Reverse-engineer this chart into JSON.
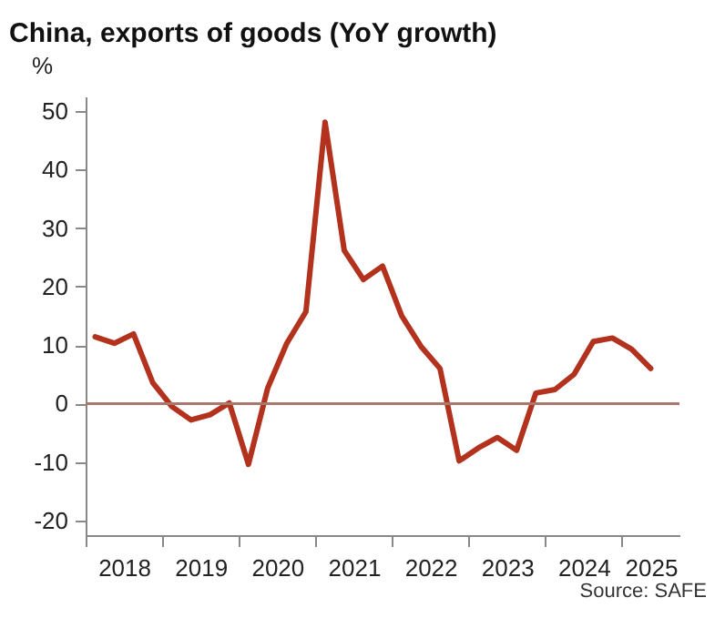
{
  "chart_data": {
    "type": "line",
    "title": "China, exports of goods (YoY growth)",
    "ylabel": "%",
    "annotations": [
      "Source: SAFE"
    ],
    "x": [
      2018.125,
      2018.375,
      2018.625,
      2018.875,
      2019.125,
      2019.375,
      2019.625,
      2019.875,
      2020.125,
      2020.375,
      2020.625,
      2020.875,
      2021.125,
      2021.375,
      2021.625,
      2021.875,
      2022.125,
      2022.375,
      2022.625,
      2022.875,
      2023.125,
      2023.375,
      2023.625,
      2023.875,
      2024.125,
      2024.375,
      2024.625,
      2024.875,
      2025.125,
      2025.375
    ],
    "series": [
      {
        "color": "#b3321e",
        "values": [
          11.4,
          10.3,
          11.9,
          3.6,
          -0.5,
          -2.8,
          -1.9,
          0.1,
          -10.4,
          2.6,
          10.3,
          15.7,
          48.1,
          26.2,
          21.2,
          23.5,
          15.0,
          9.8,
          6.0,
          -9.8,
          -7.6,
          -5.8,
          -8.0,
          1.8,
          2.4,
          5.0,
          10.6,
          11.2,
          9.3,
          6.0
        ]
      }
    ],
    "xlim": [
      2018,
      2025.75
    ],
    "xticks": [
      {
        "value": 2018,
        "label": null
      },
      {
        "value": 2018.5,
        "label": "2018"
      },
      {
        "value": 2019,
        "label": null
      },
      {
        "value": 2019.5,
        "label": "2019"
      },
      {
        "value": 2020,
        "label": null
      },
      {
        "value": 2020.5,
        "label": "2020"
      },
      {
        "value": 2021,
        "label": null
      },
      {
        "value": 2021.5,
        "label": "2021"
      },
      {
        "value": 2022,
        "label": null
      },
      {
        "value": 2022.5,
        "label": "2022"
      },
      {
        "value": 2023,
        "label": null
      },
      {
        "value": 2023.5,
        "label": "2023"
      },
      {
        "value": 2024,
        "label": null
      },
      {
        "value": 2024.5,
        "label": "2024"
      },
      {
        "value": 2025,
        "label": null
      },
      {
        "value": 2025.375,
        "label": "2025"
      }
    ],
    "ylim": [
      -22.5,
      52.5
    ],
    "yticks": [
      -20,
      -10,
      0,
      10,
      20,
      30,
      40,
      50
    ],
    "ref_lines": [
      {
        "axis": "y",
        "value": 0,
        "color": "#a8786c"
      }
    ],
    "grid": false,
    "marker": "none",
    "line_style": "solid"
  }
}
